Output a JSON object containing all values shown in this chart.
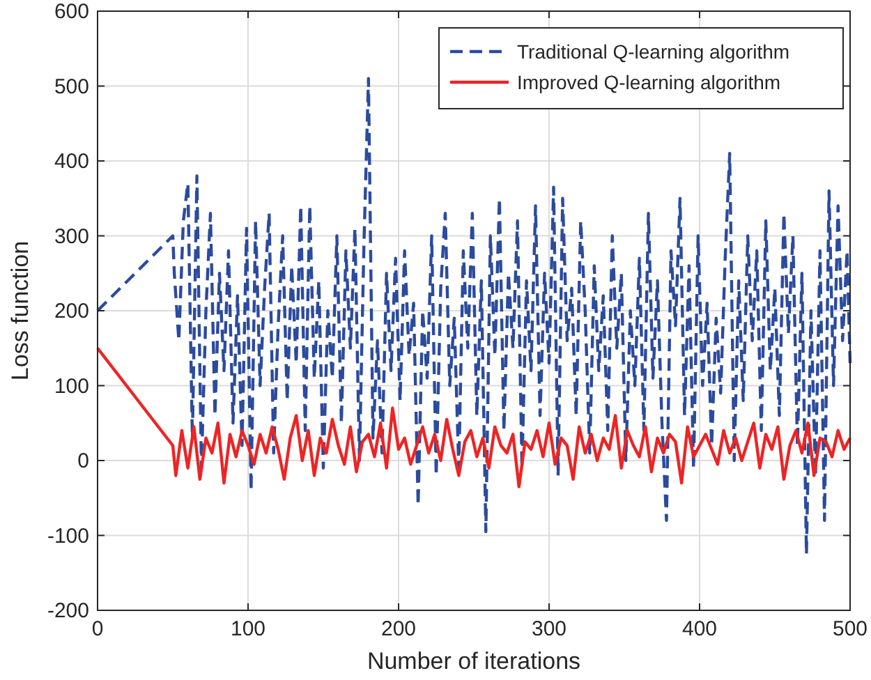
{
  "chart_data": {
    "type": "line",
    "xlabel": "Number of iterations",
    "ylabel": "Loss function",
    "xlim": [
      0,
      500
    ],
    "xticks": [
      0,
      100,
      200,
      300,
      400,
      500
    ],
    "ylim": [
      -200,
      600
    ],
    "yticks": [
      -200,
      -100,
      0,
      100,
      200,
      300,
      400,
      500,
      600
    ],
    "grid": true,
    "legend": "top right",
    "series": [
      {
        "name": "Traditional Q-learning algorithm",
        "color": "#2b4b9e",
        "line_style": "dashed",
        "x": [
          0,
          50,
          51,
          54,
          57,
          60,
          63,
          66,
          69,
          72,
          75,
          78,
          81,
          84,
          87,
          90,
          93,
          96,
          99,
          102,
          105,
          108,
          111,
          114,
          117,
          120,
          123,
          126,
          129,
          132,
          135,
          138,
          141,
          144,
          147,
          150,
          153,
          156,
          159,
          162,
          165,
          168,
          171,
          174,
          177,
          180,
          183,
          186,
          189,
          192,
          195,
          198,
          201,
          204,
          207,
          210,
          213,
          216,
          219,
          222,
          225,
          228,
          231,
          234,
          237,
          240,
          243,
          246,
          249,
          252,
          255,
          258,
          261,
          264,
          267,
          270,
          273,
          276,
          279,
          282,
          285,
          288,
          291,
          294,
          297,
          300,
          303,
          306,
          309,
          312,
          315,
          318,
          321,
          324,
          327,
          330,
          333,
          336,
          339,
          342,
          345,
          348,
          351,
          354,
          357,
          360,
          363,
          366,
          369,
          372,
          375,
          378,
          381,
          384,
          387,
          390,
          393,
          396,
          399,
          402,
          405,
          408,
          411,
          414,
          417,
          420,
          423,
          426,
          429,
          432,
          435,
          438,
          441,
          444,
          447,
          450,
          453,
          456,
          459,
          462,
          465,
          468,
          471,
          474,
          477,
          480,
          483,
          486,
          489,
          492,
          495,
          498,
          500
        ],
        "values": [
          200,
          300,
          250,
          160,
          320,
          370,
          30,
          380,
          -10,
          200,
          330,
          60,
          250,
          120,
          280,
          50,
          220,
          20,
          310,
          -40,
          320,
          100,
          230,
          330,
          10,
          180,
          300,
          80,
          260,
          130,
          340,
          40,
          340,
          110,
          240,
          -10,
          200,
          110,
          300,
          50,
          280,
          150,
          310,
          0,
          290,
          510,
          30,
          160,
          10,
          250,
          120,
          270,
          80,
          280,
          140,
          210,
          -60,
          200,
          110,
          300,
          -20,
          230,
          330,
          100,
          190,
          -10,
          280,
          150,
          330,
          60,
          240,
          -95,
          300,
          140,
          350,
          40,
          250,
          150,
          320,
          -10,
          240,
          120,
          340,
          60,
          250,
          130,
          365,
          -20,
          350,
          160,
          230,
          60,
          320,
          200,
          10,
          260,
          120,
          220,
          40,
          300,
          150,
          250,
          0,
          200,
          100,
          270,
          40,
          330,
          110,
          240,
          50,
          -80,
          280,
          180,
          350,
          60,
          260,
          -10,
          300,
          100,
          210,
          20,
          190,
          90,
          270,
          410,
          0,
          240,
          80,
          300,
          160,
          280,
          40,
          320,
          120,
          230,
          60,
          330,
          170,
          300,
          20,
          250,
          -125,
          200,
          -20,
          280,
          -80,
          360,
          100,
          340,
          160,
          280,
          130
        ]
      },
      {
        "name": "Improved Q-learning algorithm",
        "color": "#ee2424",
        "line_style": "solid",
        "x": [
          0,
          50,
          52,
          56,
          60,
          64,
          68,
          72,
          76,
          80,
          84,
          88,
          92,
          96,
          100,
          104,
          108,
          112,
          116,
          120,
          124,
          128,
          132,
          136,
          140,
          144,
          148,
          152,
          156,
          160,
          164,
          168,
          172,
          176,
          180,
          184,
          188,
          192,
          196,
          200,
          204,
          208,
          212,
          216,
          220,
          224,
          228,
          232,
          236,
          240,
          244,
          248,
          252,
          256,
          260,
          264,
          268,
          272,
          276,
          280,
          284,
          288,
          292,
          296,
          300,
          304,
          308,
          312,
          316,
          320,
          324,
          328,
          332,
          336,
          340,
          344,
          348,
          352,
          356,
          360,
          364,
          368,
          372,
          376,
          380,
          384,
          388,
          392,
          396,
          400,
          404,
          408,
          412,
          416,
          420,
          424,
          428,
          432,
          436,
          440,
          444,
          448,
          452,
          456,
          460,
          464,
          468,
          472,
          476,
          480,
          484,
          488,
          492,
          496,
          500
        ],
        "values": [
          150,
          20,
          -20,
          40,
          -10,
          45,
          -25,
          30,
          10,
          50,
          -30,
          35,
          5,
          40,
          20,
          -5,
          35,
          10,
          45,
          15,
          -25,
          30,
          60,
          0,
          40,
          -20,
          30,
          10,
          55,
          20,
          -5,
          45,
          -15,
          25,
          35,
          5,
          50,
          -10,
          70,
          15,
          30,
          -5,
          20,
          45,
          10,
          35,
          0,
          55,
          15,
          -20,
          25,
          40,
          5,
          30,
          -10,
          45,
          20,
          10,
          35,
          -35,
          25,
          15,
          40,
          5,
          50,
          -5,
          30,
          20,
          -25,
          45,
          10,
          35,
          0,
          30,
          15,
          60,
          -10,
          40,
          20,
          5,
          45,
          -15,
          30,
          10,
          35,
          25,
          -30,
          45,
          5,
          20,
          35,
          15,
          -5,
          40,
          10,
          30,
          0,
          25,
          50,
          -10,
          35,
          15,
          45,
          -25,
          20,
          40,
          10,
          50,
          -20,
          30,
          25,
          5,
          40,
          15,
          30
        ]
      }
    ]
  }
}
